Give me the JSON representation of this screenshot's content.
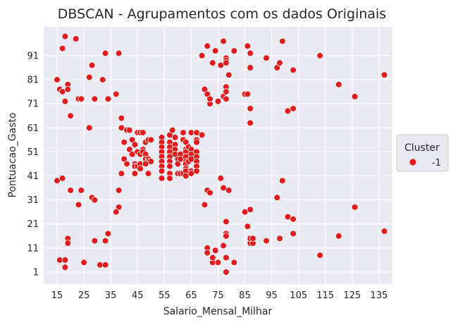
{
  "chart_data": {
    "type": "scatter",
    "title": "DBSCAN - Agrupamentos com os dados Originais",
    "xlabel": "Salario_Mensal_Milhar",
    "ylabel": "Pontuacao_Gasto",
    "xlim": [
      10,
      140
    ],
    "ylim": [
      -4,
      103
    ],
    "xticks": [
      15,
      25,
      35,
      45,
      55,
      65,
      75,
      85,
      95,
      105,
      115,
      125,
      135
    ],
    "yticks": [
      1,
      11,
      21,
      31,
      41,
      51,
      61,
      71,
      81,
      91
    ],
    "grid": true,
    "legend": {
      "title": "Cluster",
      "placement": "outside right",
      "entries": [
        "-1"
      ]
    },
    "point_color": "#e41a1c",
    "background_color": "#eaeaf2",
    "series": [
      {
        "name": "-1",
        "points": [
          [
            18,
            99
          ],
          [
            22,
            98
          ],
          [
            17,
            94
          ],
          [
            15,
            81
          ],
          [
            16,
            77
          ],
          [
            17,
            76
          ],
          [
            19,
            79
          ],
          [
            19,
            77
          ],
          [
            18,
            72
          ],
          [
            20,
            66
          ],
          [
            23,
            73
          ],
          [
            24,
            73
          ],
          [
            27,
            82
          ],
          [
            28,
            87
          ],
          [
            29,
            73
          ],
          [
            32,
            81
          ],
          [
            33,
            92
          ],
          [
            34,
            73
          ],
          [
            37,
            75
          ],
          [
            38,
            92
          ],
          [
            27,
            61
          ],
          [
            16,
            6
          ],
          [
            16,
            6
          ],
          [
            18,
            6
          ],
          [
            18,
            3
          ],
          [
            19,
            14
          ],
          [
            19,
            15
          ],
          [
            19,
            13
          ],
          [
            25,
            5
          ],
          [
            29,
            14
          ],
          [
            31,
            4
          ],
          [
            33,
            14
          ],
          [
            33,
            4
          ],
          [
            34,
            17
          ],
          [
            38,
            28
          ],
          [
            37,
            26
          ],
          [
            38,
            35
          ],
          [
            28,
            32
          ],
          [
            29,
            31
          ],
          [
            20,
            35
          ],
          [
            23,
            29
          ],
          [
            24,
            35
          ],
          [
            15,
            39
          ],
          [
            17,
            40
          ],
          [
            39,
            65
          ],
          [
            39,
            61
          ],
          [
            40,
            55
          ],
          [
            41,
            60
          ],
          [
            42,
            60
          ],
          [
            43,
            56
          ],
          [
            44,
            54
          ],
          [
            45,
            59
          ],
          [
            46,
            59
          ],
          [
            47,
            59
          ],
          [
            48,
            55
          ],
          [
            49,
            56
          ],
          [
            50,
            56
          ],
          [
            42,
            52
          ],
          [
            43,
            50
          ],
          [
            44,
            46
          ],
          [
            45,
            51
          ],
          [
            46,
            50
          ],
          [
            47,
            52
          ],
          [
            47,
            51
          ],
          [
            48,
            50
          ],
          [
            48,
            48
          ],
          [
            49,
            48
          ],
          [
            49,
            47
          ],
          [
            50,
            47
          ],
          [
            44,
            45
          ],
          [
            44,
            42
          ],
          [
            45,
            45
          ],
          [
            46,
            46
          ],
          [
            46,
            44
          ],
          [
            48,
            46
          ],
          [
            39,
            42
          ],
          [
            39,
            42
          ],
          [
            40,
            48
          ],
          [
            41,
            46
          ],
          [
            49,
            42
          ],
          [
            54,
            57
          ],
          [
            54,
            55
          ],
          [
            54,
            53
          ],
          [
            54,
            51
          ],
          [
            54,
            49
          ],
          [
            54,
            47
          ],
          [
            54,
            45
          ],
          [
            54,
            43
          ],
          [
            54,
            40
          ],
          [
            57,
            58
          ],
          [
            57,
            55
          ],
          [
            57,
            53
          ],
          [
            57,
            51
          ],
          [
            57,
            49
          ],
          [
            57,
            47
          ],
          [
            57,
            45
          ],
          [
            57,
            42
          ],
          [
            57,
            40
          ],
          [
            58,
            60
          ],
          [
            59,
            57
          ],
          [
            59,
            54
          ],
          [
            59,
            52
          ],
          [
            59,
            50
          ],
          [
            60,
            48
          ],
          [
            60,
            46
          ],
          [
            61,
            50
          ],
          [
            61,
            48
          ],
          [
            60,
            42
          ],
          [
            61,
            42
          ],
          [
            62,
            42
          ],
          [
            62,
            59
          ],
          [
            62,
            56
          ],
          [
            63,
            55
          ],
          [
            63,
            52
          ],
          [
            63,
            51
          ],
          [
            63,
            49
          ],
          [
            63,
            47
          ],
          [
            63,
            46
          ],
          [
            63,
            44
          ],
          [
            63,
            43
          ],
          [
            63,
            41
          ],
          [
            64,
            53
          ],
          [
            64,
            47
          ],
          [
            65,
            59
          ],
          [
            65,
            52
          ],
          [
            65,
            50
          ],
          [
            65,
            48
          ],
          [
            65,
            43
          ],
          [
            65,
            42
          ],
          [
            67,
            59
          ],
          [
            67,
            56
          ],
          [
            67,
            55
          ],
          [
            67,
            51
          ],
          [
            67,
            49
          ],
          [
            67,
            47
          ],
          [
            67,
            45
          ],
          [
            67,
            43
          ],
          [
            69,
            58
          ],
          [
            69,
            91
          ],
          [
            70,
            77
          ],
          [
            71,
            95
          ],
          [
            71,
            75
          ],
          [
            72,
            71
          ],
          [
            72,
            73
          ],
          [
            73,
            88
          ],
          [
            74,
            93
          ],
          [
            75,
            72
          ],
          [
            76,
            87
          ],
          [
            77,
            97
          ],
          [
            77,
            74
          ],
          [
            78,
            90
          ],
          [
            78,
            89
          ],
          [
            78,
            88
          ],
          [
            78,
            78
          ],
          [
            78,
            76
          ],
          [
            78,
            73
          ],
          [
            79,
            83
          ],
          [
            81,
            93
          ],
          [
            85,
            75
          ],
          [
            86,
            95
          ],
          [
            86,
            75
          ],
          [
            87,
            92
          ],
          [
            87,
            86
          ],
          [
            87,
            69
          ],
          [
            87,
            63
          ],
          [
            93,
            90
          ],
          [
            97,
            86
          ],
          [
            98,
            88
          ],
          [
            99,
            97
          ],
          [
            101,
            68
          ],
          [
            103,
            85
          ],
          [
            103,
            69
          ],
          [
            113,
            91
          ],
          [
            120,
            79
          ],
          [
            126,
            74
          ],
          [
            137,
            83
          ],
          [
            70,
            29
          ],
          [
            71,
            11
          ],
          [
            71,
            9
          ],
          [
            71,
            35
          ],
          [
            72,
            34
          ],
          [
            73,
            5
          ],
          [
            73,
            7
          ],
          [
            74,
            10
          ],
          [
            75,
            5
          ],
          [
            76,
            40
          ],
          [
            77,
            36
          ],
          [
            77,
            12
          ],
          [
            78,
            1
          ],
          [
            78,
            22
          ],
          [
            78,
            17
          ],
          [
            78,
            16
          ],
          [
            78,
            7
          ],
          [
            79,
            35
          ],
          [
            81,
            5
          ],
          [
            85,
            26
          ],
          [
            86,
            20
          ],
          [
            87,
            27
          ],
          [
            87,
            13
          ],
          [
            87,
            15
          ],
          [
            88,
            13
          ],
          [
            88,
            15
          ],
          [
            93,
            14
          ],
          [
            97,
            32
          ],
          [
            98,
            15
          ],
          [
            99,
            39
          ],
          [
            101,
            24
          ],
          [
            103,
            23
          ],
          [
            103,
            17
          ],
          [
            113,
            8
          ],
          [
            120,
            16
          ],
          [
            126,
            28
          ],
          [
            137,
            18
          ]
        ]
      }
    ]
  }
}
